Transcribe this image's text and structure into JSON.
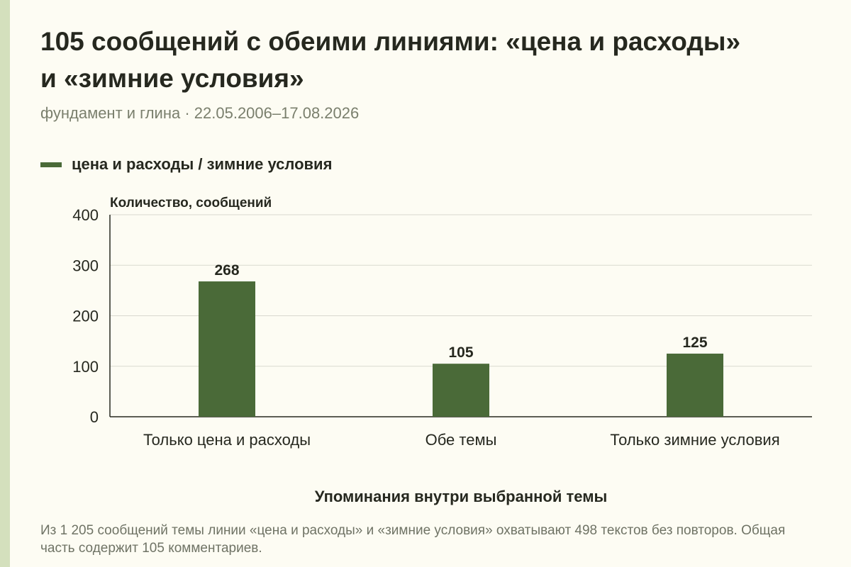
{
  "title": "105 сообщений с обеими линиями: «цена и расходы» и «зимние условия»",
  "subtitle": "фундамент и глина · 22.05.2006–17.08.2026",
  "note": "Из 1 205 сообщений темы линии «цена и расходы» и «зимние условия» охватывают 498 текстов без повторов. Общая часть содержит 105 комментариев.",
  "colors": {
    "bar": "#4a6a38",
    "grid": "#d9d9cf",
    "axis": "#26281f",
    "background": "#fdfcf3"
  },
  "chart_data": {
    "type": "bar",
    "categories": [
      "Только цена и расходы",
      "Обе темы",
      "Только зимние условия"
    ],
    "series": [
      {
        "name": "цена и расходы / зимние условия",
        "values": [
          268,
          105,
          125
        ]
      }
    ],
    "xlabel": "Упоминания внутри выбранной темы",
    "ylabel": "Количество, сообщений",
    "ylim": [
      0,
      400
    ],
    "yticks": [
      0,
      100,
      200,
      300,
      400
    ],
    "grid": true,
    "legend_position": "top-left"
  }
}
